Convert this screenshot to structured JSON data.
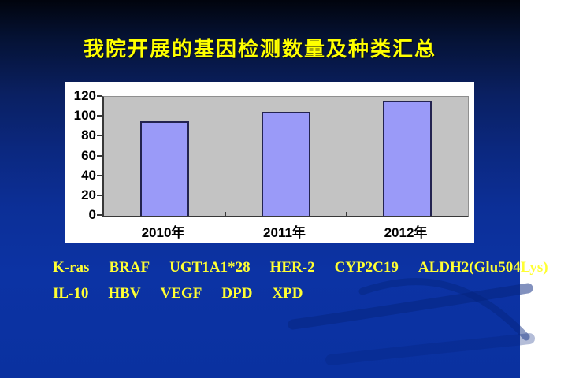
{
  "slide": {
    "title": "我院开展的基因检测数量及种类汇总",
    "title_color": "#FFFF00",
    "background_top_color": "#01040D",
    "background_bottom_color": "#0A31A0",
    "swoosh_color": "#06247D"
  },
  "chart_data": {
    "type": "bar",
    "categories": [
      "2010年",
      "2011年",
      "2012年"
    ],
    "values": [
      95,
      105,
      116
    ],
    "title": "",
    "xlabel": "",
    "ylabel": "",
    "ylim": [
      0,
      120
    ],
    "yticks": [
      0,
      20,
      40,
      60,
      80,
      100,
      120
    ],
    "grid": false,
    "legend_position": "none",
    "bar_color": "#9A9AF8",
    "bar_border_color": "#23234F",
    "plot_background": "#C3C3C3",
    "panel_background": "#FFFFFF",
    "axis_label_color": "#000000"
  },
  "gene_list": {
    "lines": [
      [
        "K-ras",
        "BRAF",
        "UGT1A1*28",
        "HER-2",
        "CYP2C19",
        "ALDH2(Glu504Lys)"
      ],
      [
        "IL-10",
        "HBV",
        "VEGF",
        "DPD",
        "XPD"
      ]
    ],
    "text_color": "#FFFF33"
  }
}
